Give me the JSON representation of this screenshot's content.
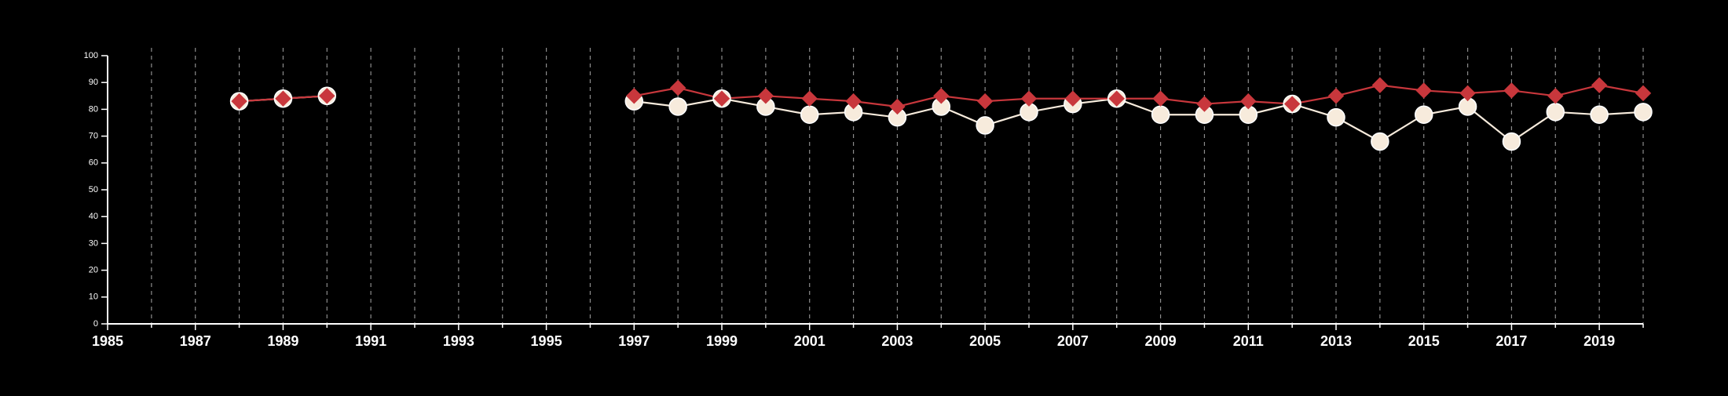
{
  "chart_data": {
    "type": "line",
    "title": "",
    "xlabel": "",
    "ylabel": "",
    "xlim": [
      1985,
      2020
    ],
    "ylim": [
      0,
      100
    ],
    "x_ticks": [
      1985,
      1987,
      1989,
      1991,
      1993,
      1995,
      1997,
      1999,
      2001,
      2003,
      2005,
      2007,
      2009,
      2011,
      2013,
      2015,
      2017,
      2019
    ],
    "x_tick_labels": [
      "1985",
      "1987",
      "1989",
      "1991",
      "1993",
      "1995",
      "1997",
      "1999",
      "2001",
      "2003",
      "2005",
      "2007",
      "2009",
      "2011",
      "2013",
      "2015",
      "2017",
      "2019"
    ],
    "y_ticks": [
      0,
      10,
      20,
      30,
      40,
      50,
      60,
      70,
      80,
      90,
      100
    ],
    "y_tick_labels": [
      "0",
      "10",
      "20",
      "30",
      "40",
      "50",
      "60",
      "70",
      "80",
      "90",
      "100"
    ],
    "grid": "vertical dashed lines at every year",
    "legend": "none",
    "series": [
      {
        "marker": "diamond",
        "color": "#c8373c",
        "points": [
          {
            "x": 1988,
            "y": 83
          },
          {
            "x": 1989,
            "y": 84
          },
          {
            "x": 1990,
            "y": 85
          },
          null,
          {
            "x": 1997,
            "y": 85
          },
          {
            "x": 1998,
            "y": 88
          },
          {
            "x": 1999,
            "y": 84
          },
          {
            "x": 2000,
            "y": 85
          },
          {
            "x": 2001,
            "y": 84
          },
          {
            "x": 2002,
            "y": 83
          },
          {
            "x": 2003,
            "y": 81
          },
          {
            "x": 2004,
            "y": 85
          },
          {
            "x": 2005,
            "y": 83
          },
          {
            "x": 2006,
            "y": 84
          },
          {
            "x": 2007,
            "y": 84
          },
          {
            "x": 2008,
            "y": 84
          },
          {
            "x": 2009,
            "y": 84
          },
          {
            "x": 2010,
            "y": 82
          },
          {
            "x": 2011,
            "y": 83
          },
          {
            "x": 2012,
            "y": 82
          },
          {
            "x": 2013,
            "y": 85
          },
          {
            "x": 2014,
            "y": 89
          },
          {
            "x": 2015,
            "y": 87
          },
          {
            "x": 2016,
            "y": 86
          },
          {
            "x": 2017,
            "y": 87
          },
          {
            "x": 2018,
            "y": 85
          },
          {
            "x": 2019,
            "y": 89
          },
          {
            "x": 2020,
            "y": 86
          }
        ]
      },
      {
        "marker": "circle",
        "color": "#f7ebdc",
        "points": [
          {
            "x": 1988,
            "y": 83
          },
          {
            "x": 1989,
            "y": 84
          },
          {
            "x": 1990,
            "y": 85
          },
          null,
          {
            "x": 1997,
            "y": 83
          },
          {
            "x": 1998,
            "y": 81
          },
          {
            "x": 1999,
            "y": 84
          },
          {
            "x": 2000,
            "y": 81
          },
          {
            "x": 2001,
            "y": 78
          },
          {
            "x": 2002,
            "y": 79
          },
          {
            "x": 2003,
            "y": 77
          },
          {
            "x": 2004,
            "y": 81
          },
          {
            "x": 2005,
            "y": 74
          },
          {
            "x": 2006,
            "y": 79
          },
          {
            "x": 2007,
            "y": 82
          },
          {
            "x": 2008,
            "y": 84
          },
          {
            "x": 2009,
            "y": 78
          },
          {
            "x": 2010,
            "y": 78
          },
          {
            "x": 2011,
            "y": 78
          },
          {
            "x": 2012,
            "y": 82
          },
          {
            "x": 2013,
            "y": 77
          },
          {
            "x": 2014,
            "y": 68
          },
          {
            "x": 2015,
            "y": 78
          },
          {
            "x": 2016,
            "y": 81
          },
          {
            "x": 2017,
            "y": 68
          },
          {
            "x": 2018,
            "y": 79
          },
          {
            "x": 2019,
            "y": 78
          },
          {
            "x": 2020,
            "y": 79
          }
        ]
      }
    ]
  }
}
